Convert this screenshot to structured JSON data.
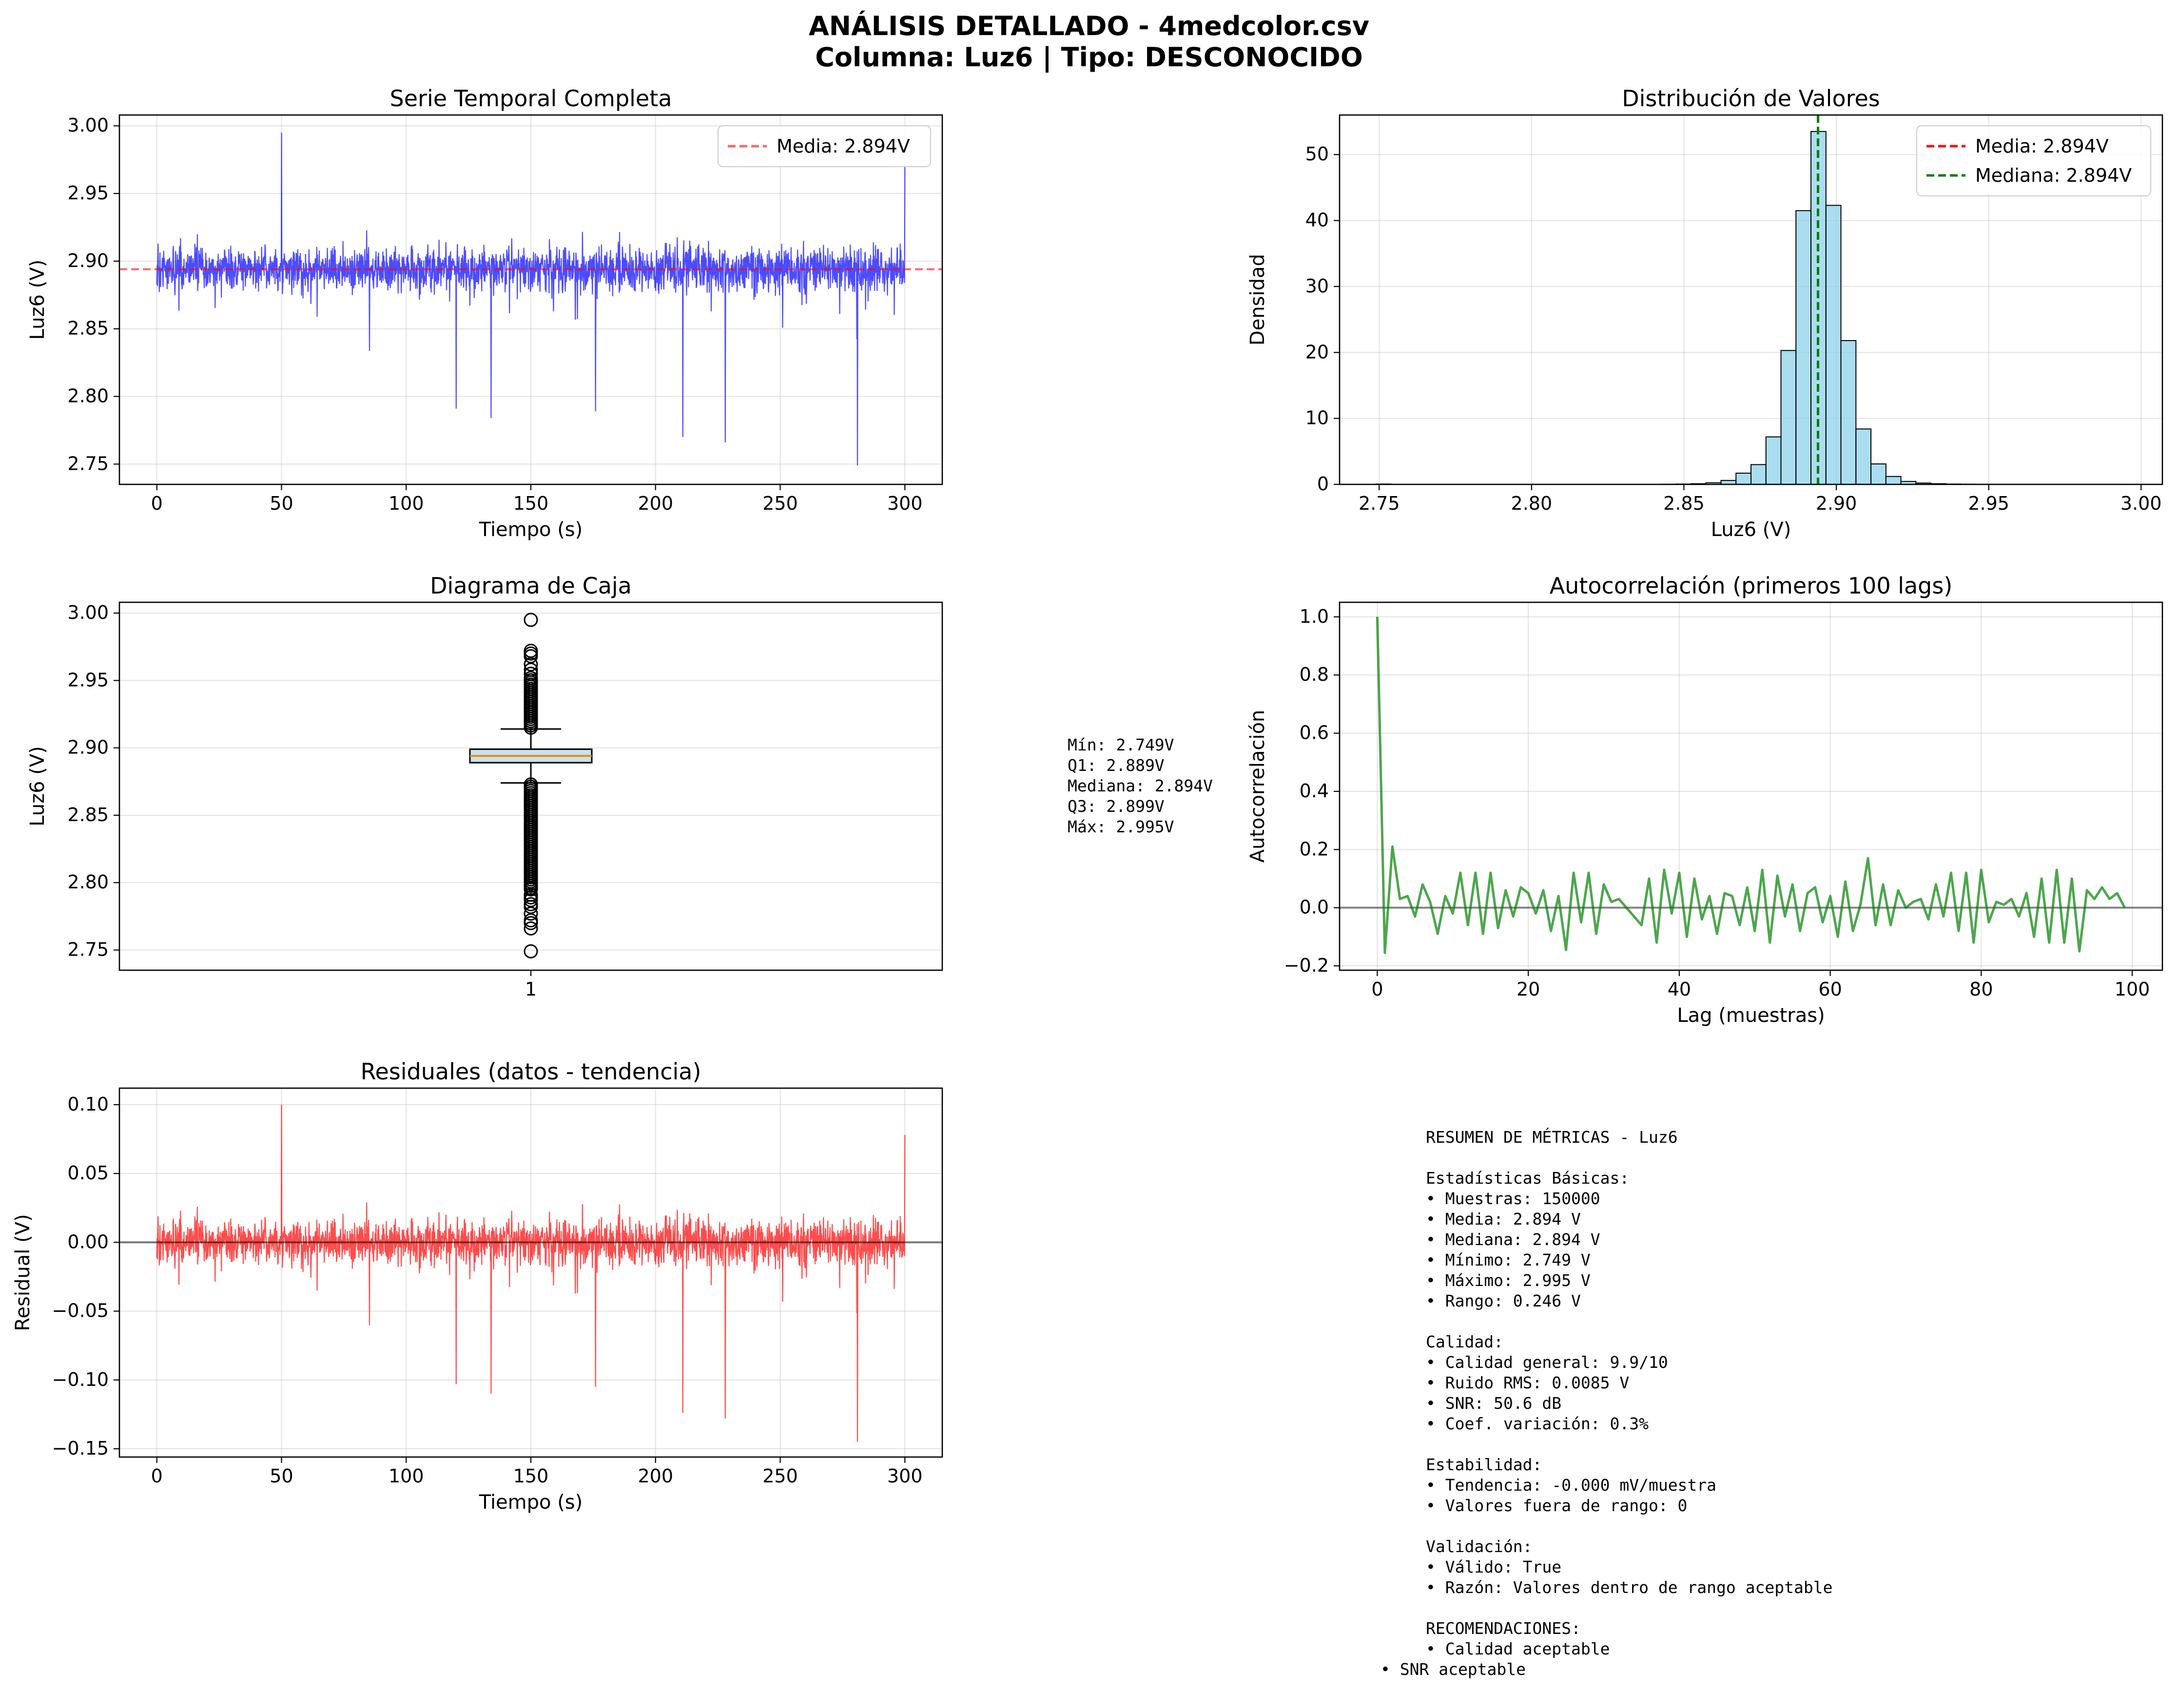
{
  "figure": {
    "title_line1": "ANÁLISIS DETALLADO - 4medcolor.csv",
    "title_line2": "Columna: Luz6 | Tipo: DESCONOCIDO"
  },
  "chart_data": [
    {
      "id": "serie",
      "type": "line",
      "title": "Serie Temporal Completa",
      "xlabel": "Tiempo (s)",
      "ylabel": "Luz6 (V)",
      "xlim": [
        -15,
        315
      ],
      "ylim": [
        2.735,
        3.008
      ],
      "xticks": [
        0,
        50,
        100,
        150,
        200,
        250,
        300
      ],
      "yticks": [
        2.75,
        2.8,
        2.85,
        2.9,
        2.95,
        3.0
      ],
      "ytick_labels": [
        "2.75",
        "2.80",
        "2.85",
        "2.90",
        "2.95",
        "3.00"
      ],
      "grid": true,
      "series_color": "#0000ff",
      "mean_line": {
        "value": 2.894,
        "color": "#ff0000"
      },
      "legend": [
        "Media: 2.894V"
      ],
      "legend_loc": "upper right",
      "notable_points": [
        {
          "x": 50,
          "y": 2.995
        },
        {
          "x": 120,
          "y": 2.791
        },
        {
          "x": 134,
          "y": 2.784
        },
        {
          "x": 176,
          "y": 2.789
        },
        {
          "x": 211,
          "y": 2.77
        },
        {
          "x": 228,
          "y": 2.766
        },
        {
          "x": 281,
          "y": 2.749
        },
        {
          "x": 300,
          "y": 2.97
        }
      ]
    },
    {
      "id": "hist",
      "type": "bar",
      "title": "Distribución de Valores",
      "xlabel": "Luz6 (V)",
      "ylabel": "Densidad",
      "xlim": [
        2.737,
        3.007
      ],
      "ylim": [
        0,
        56
      ],
      "xticks": [
        2.75,
        2.8,
        2.85,
        2.9,
        2.95,
        3.0
      ],
      "xtick_labels": [
        "2.75",
        "2.80",
        "2.85",
        "2.90",
        "2.95",
        "3.00"
      ],
      "yticks": [
        0,
        10,
        20,
        30,
        40,
        50
      ],
      "grid": true,
      "bar_color": "#87ceeb",
      "bin_edges_start": 2.749,
      "bin_width": 0.00492,
      "densities": [
        0.05,
        0,
        0,
        0,
        0,
        0,
        0,
        0,
        0,
        0,
        0,
        0,
        0,
        0,
        0,
        0,
        0,
        0,
        0,
        0.02,
        0.05,
        0.1,
        0.25,
        0.6,
        1.7,
        3,
        7.2,
        20.3,
        41.5,
        53.5,
        42.3,
        21.8,
        8.4,
        3.1,
        1.2,
        0.45,
        0.2,
        0.1,
        0.05,
        0.03,
        0.01,
        0.01,
        0.01,
        0.01,
        0.005,
        0.005,
        0.005,
        0.005,
        0.005,
        0.005
      ],
      "mean_line": {
        "value": 2.894,
        "color": "#ff0000"
      },
      "median_line": {
        "value": 2.894,
        "color": "#008000"
      },
      "legend": [
        "Media: 2.894V",
        "Mediana: 2.894V"
      ],
      "legend_loc": "upper right"
    },
    {
      "id": "box",
      "type": "box",
      "title": "Diagrama de Caja",
      "xlabel": "",
      "ylabel": "Luz6 (V)",
      "xticks": [
        "1"
      ],
      "ylim": [
        2.735,
        3.008
      ],
      "yticks": [
        2.75,
        2.8,
        2.85,
        2.9,
        2.95,
        3.0
      ],
      "ytick_labels": [
        "2.75",
        "2.80",
        "2.85",
        "2.90",
        "2.95",
        "3.00"
      ],
      "grid": true,
      "box_color": "#add8e6",
      "median_color": "#ff7f0e",
      "q1": 2.889,
      "median": 2.894,
      "q3": 2.899,
      "whisker_low": 2.874,
      "whisker_high": 2.914,
      "outliers_high": [
        2.995,
        2.972,
        2.97,
        2.968,
        2.962,
        2.958,
        2.955
      ],
      "outliers_low": [
        2.749,
        2.766,
        2.77,
        2.772,
        2.777,
        2.782,
        2.784,
        2.787,
        2.789,
        2.791,
        2.795
      ],
      "stats_box": [
        "Mín: 2.749V",
        "Q1: 2.889V",
        "Mediana: 2.894V",
        "Q3: 2.899V",
        "Máx: 2.995V"
      ]
    },
    {
      "id": "acf",
      "type": "line",
      "title": "Autocorrelación (primeros 100 lags)",
      "xlabel": "Lag (muestras)",
      "ylabel": "Autocorrelación",
      "xlim": [
        -5,
        104
      ],
      "ylim": [
        -0.215,
        1.05
      ],
      "xticks": [
        0,
        20,
        40,
        60,
        80,
        100
      ],
      "yticks": [
        -0.2,
        0.0,
        0.2,
        0.4,
        0.6,
        0.8,
        1.0
      ],
      "ytick_labels": [
        "−0.2",
        "0.0",
        "0.2",
        "0.4",
        "0.6",
        "0.8",
        "1.0"
      ],
      "grid": true,
      "series_color": "#008000",
      "zero_line": true,
      "values": [
        1.0,
        -0.155,
        0.21,
        0.03,
        0.04,
        -0.03,
        0.08,
        0.02,
        -0.09,
        0.04,
        -0.02,
        0.12,
        -0.06,
        0.12,
        -0.09,
        0.12,
        -0.07,
        0.06,
        -0.03,
        0.07,
        0.05,
        -0.02,
        0.06,
        -0.08,
        0.04,
        -0.145,
        0.12,
        -0.05,
        0.12,
        -0.09,
        0.08,
        0.02,
        0.03,
        0.0,
        -0.03,
        -0.06,
        0.1,
        -0.12,
        0.13,
        -0.02,
        0.12,
        -0.1,
        0.1,
        -0.04,
        0.04,
        -0.09,
        0.05,
        0.04,
        -0.06,
        0.07,
        -0.08,
        0.13,
        -0.12,
        0.11,
        -0.03,
        0.08,
        -0.08,
        0.05,
        0.07,
        -0.05,
        0.04,
        -0.1,
        0.09,
        -0.08,
        0.01,
        0.17,
        -0.06,
        0.08,
        -0.06,
        0.06,
        0.0,
        0.02,
        0.03,
        -0.04,
        0.08,
        -0.03,
        0.12,
        -0.08,
        0.12,
        -0.12,
        0.13,
        -0.05,
        0.02,
        0.01,
        0.03,
        -0.03,
        0.05,
        -0.1,
        0.1,
        -0.12,
        0.13,
        -0.12,
        0.1,
        -0.15,
        0.06,
        0.03,
        0.07,
        0.03,
        0.05,
        0.0
      ]
    },
    {
      "id": "resid",
      "type": "line",
      "title": "Residuales (datos - tendencia)",
      "xlabel": "Tiempo (s)",
      "ylabel": "Residual (V)",
      "xlim": [
        -15,
        315
      ],
      "ylim": [
        -0.156,
        0.112
      ],
      "xticks": [
        0,
        50,
        100,
        150,
        200,
        250,
        300
      ],
      "yticks": [
        -0.15,
        -0.1,
        -0.05,
        0.0,
        0.05,
        0.1
      ],
      "ytick_labels": [
        "−0.15",
        "−0.10",
        "−0.05",
        "0.00",
        "0.05",
        "0.10"
      ],
      "grid": true,
      "series_color": "#ff0000",
      "zero_line": true,
      "notable_points": [
        {
          "x": 50,
          "y": 0.1
        },
        {
          "x": 120,
          "y": -0.103
        },
        {
          "x": 134,
          "y": -0.11
        },
        {
          "x": 176,
          "y": -0.105
        },
        {
          "x": 211,
          "y": -0.124
        },
        {
          "x": 228,
          "y": -0.128
        },
        {
          "x": 281,
          "y": -0.145
        },
        {
          "x": 300,
          "y": 0.078
        }
      ]
    }
  ],
  "summary": {
    "lines": [
      "RESUMEN DE MÉTRICAS - Luz6",
      "",
      "Estadísticas Básicas:",
      "• Muestras: 150000",
      "• Media: 2.894 V",
      "• Mediana: 2.894 V",
      "• Mínimo: 2.749 V",
      "• Máximo: 2.995 V",
      "• Rango: 0.246 V",
      "",
      "Calidad:",
      "• Calidad general: 9.9/10",
      "• Ruido RMS: 0.0085 V",
      "• SNR: 50.6 dB",
      "• Coef. variación: 0.3%",
      "",
      "Estabilidad:",
      "• Tendencia: -0.000 mV/muestra",
      "• Valores fuera de rango: 0",
      "",
      "Validación:",
      "• Válido: True",
      "• Razón: Valores dentro de rango aceptable",
      "",
      "RECOMENDACIONES:",
      "• Calidad aceptable"
    ],
    "last_line": "• SNR aceptable"
  }
}
